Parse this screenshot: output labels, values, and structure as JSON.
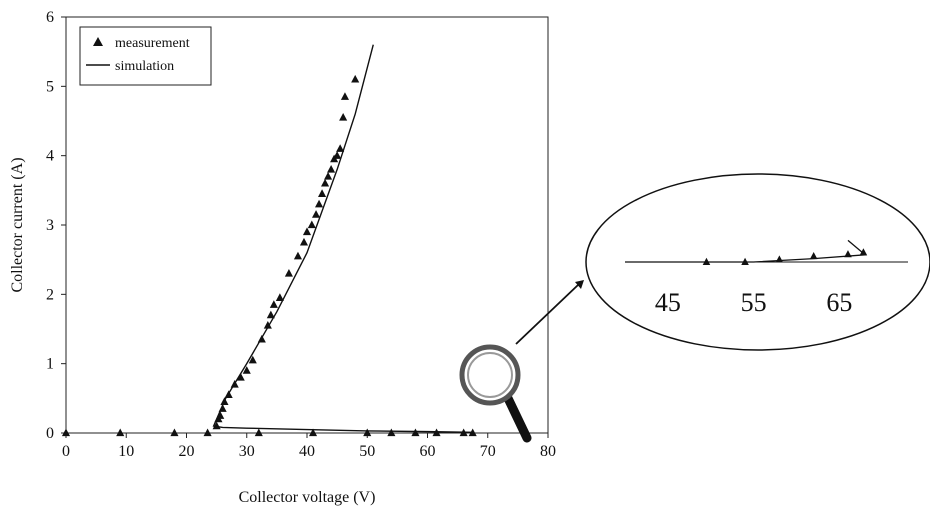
{
  "chart_data": [
    {
      "type": "scatter",
      "title": "",
      "xlabel": "Collector voltage (V)",
      "ylabel": "Collector current (A)",
      "xlim": [
        0,
        80
      ],
      "ylim": [
        0,
        6
      ],
      "xticks": [
        "0",
        "10",
        "20",
        "30",
        "40",
        "50",
        "60",
        "70",
        "80"
      ],
      "yticks": [
        "0",
        "1",
        "2",
        "3",
        "4",
        "5",
        "6"
      ],
      "grid": false,
      "legend": {
        "placement": "top-left",
        "entries": [
          "measurement",
          "simulation"
        ]
      },
      "series": [
        {
          "name": "measurement",
          "marker": "triangle",
          "points": [
            [
              0,
              0
            ],
            [
              9,
              0
            ],
            [
              18,
              0
            ],
            [
              23.5,
              0
            ],
            [
              32,
              0
            ],
            [
              41,
              0
            ],
            [
              50,
              0
            ],
            [
              54,
              0
            ],
            [
              58,
              0
            ],
            [
              61.5,
              0
            ],
            [
              66,
              0
            ],
            [
              67.5,
              0
            ],
            [
              25,
              0.1
            ],
            [
              25.3,
              0.2
            ],
            [
              25.6,
              0.25
            ],
            [
              26,
              0.35
            ],
            [
              26.3,
              0.45
            ],
            [
              27,
              0.55
            ],
            [
              28,
              0.7
            ],
            [
              29,
              0.8
            ],
            [
              30,
              0.9
            ],
            [
              31,
              1.05
            ],
            [
              32.5,
              1.35
            ],
            [
              33.5,
              1.55
            ],
            [
              34,
              1.7
            ],
            [
              34.5,
              1.85
            ],
            [
              35.5,
              1.95
            ],
            [
              37,
              2.3
            ],
            [
              38.5,
              2.55
            ],
            [
              39.5,
              2.75
            ],
            [
              40,
              2.9
            ],
            [
              40.8,
              3.0
            ],
            [
              41.5,
              3.15
            ],
            [
              42,
              3.3
            ],
            [
              42.5,
              3.45
            ],
            [
              43,
              3.6
            ],
            [
              43.5,
              3.7
            ],
            [
              44,
              3.8
            ],
            [
              44.5,
              3.95
            ],
            [
              45,
              4.0
            ],
            [
              45.5,
              4.1
            ],
            [
              46,
              4.55
            ],
            [
              46.3,
              4.85
            ],
            [
              48,
              5.1
            ]
          ]
        },
        {
          "name": "simulation",
          "line": true,
          "points": [
            [
              67.5,
              0.01
            ],
            [
              60,
              0.02
            ],
            [
              50,
              0.03
            ],
            [
              40,
              0.05
            ],
            [
              30,
              0.07
            ],
            [
              26,
              0.08
            ],
            [
              24.5,
              0.1
            ],
            [
              25.5,
              0.3
            ],
            [
              26.5,
              0.5
            ],
            [
              30,
              1.0
            ],
            [
              35,
              1.75
            ],
            [
              40,
              2.6
            ],
            [
              45,
              3.8
            ],
            [
              48,
              4.6
            ],
            [
              51,
              5.6
            ]
          ]
        }
      ]
    },
    {
      "type": "line",
      "title": "",
      "description_inset": false,
      "xticks": [
        "45",
        "55",
        "65"
      ],
      "xlim": [
        40,
        73
      ],
      "series": [
        {
          "name": "measurement",
          "marker": "triangle",
          "points": [
            [
              49.5,
              0.0
            ],
            [
              54,
              0.0
            ],
            [
              58,
              0.05
            ],
            [
              62,
              0.12
            ],
            [
              66,
              0.16
            ],
            [
              67.8,
              0.2
            ]
          ]
        },
        {
          "name": "simulation",
          "line": true,
          "points": [
            [
              40,
              0.0
            ],
            [
              55,
              0.0
            ],
            [
              62,
              0.07
            ],
            [
              68,
              0.15
            ],
            [
              66,
              0.45
            ]
          ]
        }
      ]
    }
  ]
}
